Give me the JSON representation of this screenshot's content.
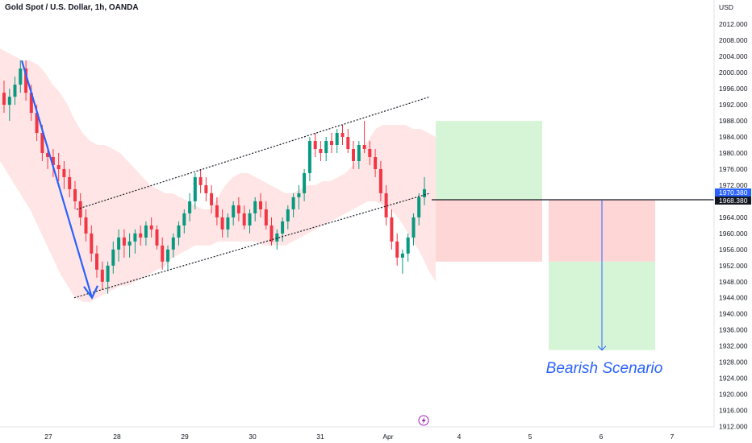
{
  "header": {
    "symbol": "Gold Spot / U.S. Dollar, 1h, OANDA",
    "currency": "USD"
  },
  "scenario_label": "Bearish Scenario",
  "price_labels": {
    "upper": "1970.380",
    "lower": "1968.380",
    "upper_color": "#2962ff",
    "lower_color": "#131722"
  },
  "replay_icon": "lightning-icon",
  "colors": {
    "up": "#089981",
    "down": "#f23645",
    "band": "#ffe0e0",
    "arrow": "#2962ff",
    "profit": "#d6f5d6",
    "loss": "#ffd6d6"
  },
  "chart_data": {
    "type": "candlestick",
    "title": "Gold Spot / U.S. Dollar, 1h, OANDA",
    "ylabel": "USD",
    "ylim": [
      1910,
      2020
    ],
    "y_ticks": [
      1912,
      1916,
      1920,
      1924,
      1928,
      1932,
      1936,
      1940,
      1944,
      1948,
      1952,
      1956,
      1960,
      1964,
      1968,
      1972,
      1976,
      1980,
      1984,
      1988,
      1992,
      1996,
      2000,
      2004,
      2008,
      2012
    ],
    "x_ticks": [
      "27",
      "28",
      "29",
      "30",
      "31",
      "Apr",
      "4",
      "5",
      "6",
      "7"
    ],
    "current_price": 1968.38,
    "candles": [
      [
        1995,
        1998,
        1990,
        1992
      ],
      [
        1992,
        1996,
        1988,
        1994
      ],
      [
        1994,
        1999,
        1992,
        1997
      ],
      [
        1997,
        2003,
        1995,
        2001
      ],
      [
        2001,
        2003,
        1993,
        1995
      ],
      [
        1995,
        1997,
        1988,
        1990
      ],
      [
        1990,
        1992,
        1983,
        1985
      ],
      [
        1985,
        1987,
        1978,
        1980
      ],
      [
        1980,
        1982,
        1976,
        1979
      ],
      [
        1979,
        1981,
        1974,
        1977
      ],
      [
        1977,
        1980,
        1973,
        1976
      ],
      [
        1976,
        1978,
        1971,
        1974
      ],
      [
        1974,
        1976,
        1969,
        1971
      ],
      [
        1971,
        1973,
        1966,
        1968
      ],
      [
        1968,
        1970,
        1962,
        1964
      ],
      [
        1964,
        1966,
        1958,
        1960
      ],
      [
        1960,
        1962,
        1953,
        1955
      ],
      [
        1955,
        1957,
        1949,
        1951
      ],
      [
        1951,
        1953,
        1946,
        1948
      ],
      [
        1948,
        1953,
        1945,
        1952
      ],
      [
        1952,
        1958,
        1950,
        1956
      ],
      [
        1956,
        1961,
        1953,
        1959
      ],
      [
        1959,
        1961,
        1954,
        1957
      ],
      [
        1957,
        1960,
        1954,
        1958
      ],
      [
        1958,
        1961,
        1955,
        1960
      ],
      [
        1960,
        1962,
        1957,
        1959
      ],
      [
        1959,
        1963,
        1957,
        1962
      ],
      [
        1962,
        1964,
        1959,
        1961
      ],
      [
        1961,
        1962,
        1956,
        1957
      ],
      [
        1957,
        1959,
        1951,
        1953
      ],
      [
        1953,
        1957,
        1951,
        1956
      ],
      [
        1956,
        1960,
        1954,
        1959
      ],
      [
        1959,
        1963,
        1957,
        1962
      ],
      [
        1962,
        1966,
        1960,
        1965
      ],
      [
        1965,
        1970,
        1963,
        1968
      ],
      [
        1968,
        1975,
        1966,
        1974
      ],
      [
        1974,
        1976,
        1970,
        1972
      ],
      [
        1972,
        1974,
        1968,
        1970
      ],
      [
        1970,
        1972,
        1965,
        1967
      ],
      [
        1967,
        1969,
        1962,
        1964
      ],
      [
        1964,
        1966,
        1959,
        1961
      ],
      [
        1961,
        1965,
        1959,
        1964
      ],
      [
        1964,
        1968,
        1962,
        1967
      ],
      [
        1967,
        1969,
        1963,
        1965
      ],
      [
        1965,
        1967,
        1961,
        1962
      ],
      [
        1962,
        1966,
        1960,
        1965
      ],
      [
        1965,
        1969,
        1963,
        1968
      ],
      [
        1968,
        1970,
        1964,
        1966
      ],
      [
        1966,
        1968,
        1961,
        1962
      ],
      [
        1962,
        1964,
        1957,
        1958
      ],
      [
        1958,
        1961,
        1956,
        1960
      ],
      [
        1960,
        1964,
        1958,
        1963
      ],
      [
        1963,
        1967,
        1961,
        1966
      ],
      [
        1966,
        1970,
        1964,
        1969
      ],
      [
        1969,
        1972,
        1966,
        1970
      ],
      [
        1970,
        1976,
        1968,
        1975
      ],
      [
        1975,
        1984,
        1973,
        1983
      ],
      [
        1983,
        1985,
        1979,
        1981
      ],
      [
        1981,
        1983,
        1978,
        1980
      ],
      [
        1980,
        1984,
        1978,
        1983
      ],
      [
        1983,
        1985,
        1980,
        1982
      ],
      [
        1982,
        1986,
        1980,
        1985
      ],
      [
        1985,
        1987,
        1982,
        1984
      ],
      [
        1984,
        1986,
        1980,
        1981
      ],
      [
        1981,
        1983,
        1976,
        1978
      ],
      [
        1978,
        1983,
        1976,
        1982
      ],
      [
        1982,
        1988,
        1980,
        1981
      ],
      [
        1981,
        1983,
        1977,
        1979
      ],
      [
        1979,
        1981,
        1974,
        1976
      ],
      [
        1976,
        1978,
        1968,
        1970
      ],
      [
        1970,
        1972,
        1962,
        1964
      ],
      [
        1964,
        1966,
        1956,
        1958
      ],
      [
        1958,
        1960,
        1952,
        1954
      ],
      [
        1954,
        1956,
        1950,
        1955
      ],
      [
        1955,
        1960,
        1953,
        1959
      ],
      [
        1959,
        1965,
        1957,
        1964
      ],
      [
        1964,
        1970,
        1962,
        1969
      ],
      [
        1969,
        1974,
        1967,
        1971
      ]
    ],
    "band": {
      "upper": [
        2006,
        2005,
        2004,
        2003,
        2003,
        2002,
        2000,
        1997,
        1995,
        1992,
        1988,
        1985,
        1983,
        1982,
        1982,
        1981,
        1980,
        1978,
        1976,
        1974,
        1972,
        1971,
        1970,
        1970,
        1969,
        1968,
        1967,
        1966,
        1966,
        1969,
        1972,
        1974,
        1975,
        1975,
        1974,
        1973,
        1972,
        1971,
        1970,
        1970,
        1971,
        1972,
        1972,
        1973,
        1973,
        1974,
        1975,
        1977,
        1980,
        1983,
        1986,
        1987,
        1987,
        1987,
        1987,
        1986,
        1986,
        1985,
        1984
      ],
      "lower": [
        1978,
        1975,
        1972,
        1969,
        1966,
        1962,
        1958,
        1954,
        1950,
        1947,
        1944,
        1943,
        1943,
        1944,
        1945,
        1946,
        1947,
        1947,
        1948,
        1949,
        1950,
        1951,
        1952,
        1954,
        1955,
        1956,
        1957,
        1957,
        1957,
        1958,
        1958,
        1958,
        1958,
        1958,
        1958,
        1957,
        1957,
        1957,
        1957,
        1958,
        1959,
        1960,
        1961,
        1962,
        1963,
        1964,
        1965,
        1966,
        1967,
        1968,
        1968,
        1967,
        1966,
        1964,
        1961,
        1958,
        1955,
        1951,
        1948
      ]
    },
    "channel": {
      "upper_line": {
        "from": [
          "27 13:00",
          1966
        ],
        "to": [
          "Apr 02:00",
          1994
        ]
      },
      "lower_line": {
        "from": [
          "27 13:00",
          1944
        ],
        "to": [
          "Apr 02:00",
          1970
        ]
      }
    },
    "impulse_arrow": {
      "from": 2003,
      "to": 1944
    },
    "position_boxes": [
      {
        "name": "long-setup",
        "entry": 1968.38,
        "target": 1988,
        "stop": 1953
      },
      {
        "name": "short-setup",
        "entry": 1968.38,
        "stop": 1953,
        "target": 1931
      }
    ]
  }
}
